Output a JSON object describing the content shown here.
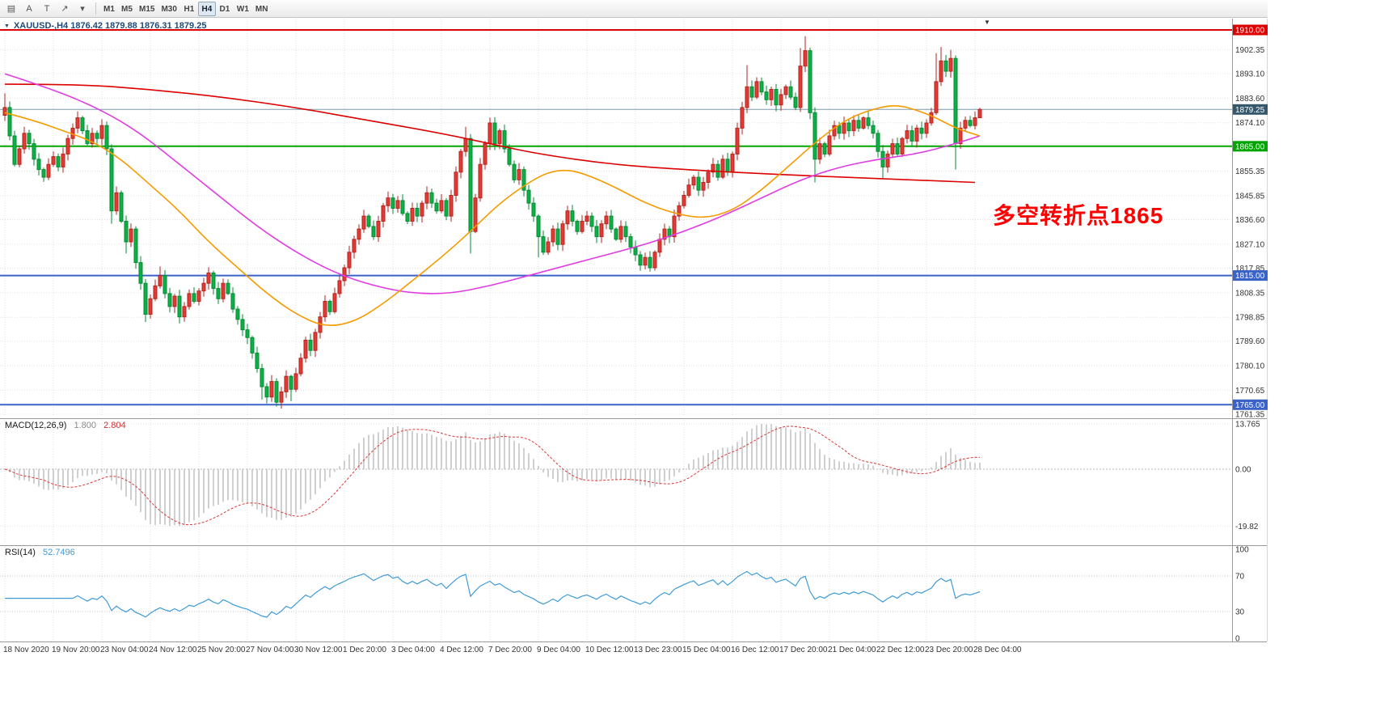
{
  "toolbar": {
    "icons": [
      {
        "name": "chart-grid-icon",
        "glyph": "▤"
      },
      {
        "name": "text-tool-icon",
        "glyph": "A"
      },
      {
        "name": "label-tool-icon",
        "glyph": "T"
      },
      {
        "name": "arrow-tool-icon",
        "glyph": "↗"
      },
      {
        "name": "arrow-dropdown-caret-icon",
        "glyph": "▾"
      }
    ],
    "timeframes": [
      "M1",
      "M5",
      "M15",
      "M30",
      "H1",
      "H4",
      "D1",
      "W1",
      "MN"
    ],
    "active_timeframe": "H4"
  },
  "chart_header": {
    "text": "XAUUSD-,H4  1876.42 1879.88 1876.31 1879.25"
  },
  "annotation": {
    "text": "多空转折点1865",
    "color": "#ff0000"
  },
  "macd_panel": {
    "name": "MACD(12,26,9)",
    "value_main": "1.800",
    "value_signal": "2.804"
  },
  "rsi_panel": {
    "name": "RSI(14)",
    "value": "52.7496"
  },
  "chart_data": {
    "type": "candlestick",
    "symbol": "XAUUSD-",
    "timeframe": "H4",
    "ohlc_readout": {
      "open": 1876.42,
      "high": 1879.88,
      "low": 1876.31,
      "close": 1879.25
    },
    "current_price": 1879.25,
    "candles_per_label": 10,
    "time_labels": [
      "18 Nov 2020",
      "19 Nov 20:00",
      "23 Nov 04:00",
      "24 Nov 12:00",
      "25 Nov 20:00",
      "27 Nov 04:00",
      "30 Nov 12:00",
      "1 Dec 20:00",
      "3 Dec 04:00",
      "4 Dec 12:00",
      "7 Dec 20:00",
      "9 Dec 04:00",
      "10 Dec 12:00",
      "13 Dec 23:00",
      "15 Dec 04:00",
      "16 Dec 12:00",
      "17 Dec 20:00",
      "21 Dec 04:00",
      "22 Dec 12:00",
      "23 Dec 20:00",
      "28 Dec 04:00"
    ],
    "y_axis": {
      "grid_labels": [
        "1902.35",
        "1893.10",
        "1883.60",
        "1874.10",
        "1855.35",
        "1845.85",
        "1836.60",
        "1827.10",
        "1817.85",
        "1808.35",
        "1798.85",
        "1789.60",
        "1780.10",
        "1770.65",
        "1761.35"
      ]
    },
    "key_levels": [
      {
        "price": 1910.0,
        "color": "#dd0000"
      },
      {
        "price": 1865.0,
        "color": "#00a400"
      },
      {
        "price": 1815.0,
        "color": "#3a62c8"
      },
      {
        "price": 1765.0,
        "color": "#3a62c8"
      }
    ],
    "special_labels": [
      {
        "text": "1910.00",
        "price": 1910.0,
        "bg": "#dd0000"
      },
      {
        "text": "1879.25",
        "price": 1879.25,
        "bg": "#35576b"
      },
      {
        "text": "1865.00",
        "price": 1865.0,
        "bg": "#00a400"
      },
      {
        "text": "1815.00",
        "price": 1815.0,
        "bg": "#3a62c8"
      },
      {
        "text": "1765.00",
        "price": 1765.0,
        "bg": "#3a62c8"
      }
    ],
    "colors": {
      "bull": "#e23b35",
      "bull_border": "#b3261f",
      "bear": "#0db045",
      "bear_border": "#088a35",
      "current_price_line": "#7d9aab"
    },
    "candles": {
      "first_open": 1877.0,
      "closes": [
        1880,
        1869,
        1858,
        1864,
        1870,
        1866,
        1860,
        1856,
        1853,
        1858,
        1861,
        1857,
        1862,
        1868,
        1872,
        1876,
        1871,
        1866,
        1870,
        1868,
        1873,
        1864,
        1840,
        1847,
        1836,
        1828,
        1833,
        1820,
        1812,
        1800,
        1806,
        1811,
        1815,
        1808,
        1803,
        1807,
        1799,
        1803,
        1808,
        1805,
        1809,
        1812,
        1816,
        1810,
        1806,
        1812,
        1808,
        1802,
        1798,
        1794,
        1791,
        1785,
        1779,
        1772,
        1768,
        1774,
        1766,
        1770,
        1776,
        1771,
        1777,
        1783,
        1790,
        1786,
        1793,
        1799,
        1805,
        1801,
        1808,
        1813,
        1818,
        1824,
        1829,
        1833,
        1838,
        1834,
        1830,
        1836,
        1842,
        1845,
        1841,
        1844,
        1839,
        1836,
        1841,
        1838,
        1843,
        1847,
        1843,
        1840,
        1844,
        1838,
        1846,
        1855,
        1863,
        1868,
        1832,
        1845,
        1858,
        1866,
        1874,
        1866,
        1871,
        1864,
        1858,
        1852,
        1856,
        1848,
        1843,
        1838,
        1830,
        1824,
        1828,
        1833,
        1827,
        1835,
        1840,
        1836,
        1832,
        1836,
        1838,
        1834,
        1830,
        1835,
        1838,
        1833,
        1829,
        1834,
        1830,
        1826,
        1823,
        1819,
        1822,
        1818,
        1824,
        1829,
        1833,
        1830,
        1838,
        1842,
        1846,
        1850,
        1853,
        1848,
        1851,
        1855,
        1858,
        1853,
        1860,
        1855,
        1862,
        1872,
        1880,
        1888,
        1884,
        1890,
        1886,
        1883,
        1887,
        1881,
        1885,
        1888,
        1884,
        1880,
        1896,
        1902,
        1878,
        1860,
        1866,
        1862,
        1869,
        1873,
        1870,
        1874,
        1871,
        1875,
        1872,
        1876,
        1873,
        1870,
        1863,
        1857,
        1862,
        1866,
        1862,
        1868,
        1871,
        1867,
        1872,
        1870,
        1874,
        1878,
        1890,
        1898,
        1894,
        1899,
        1866,
        1872,
        1875,
        1873,
        1876,
        1879.25
      ],
      "wick_overrides": {
        "0": {
          "high": 1885.5
        },
        "15": {
          "high": 1878.5
        },
        "22": {
          "low": 1835
        },
        "25": {
          "low": 1823.5
        },
        "29": {
          "low": 1797
        },
        "32": {
          "high": 1818.5
        },
        "36": {
          "low": 1796.5
        },
        "53": {
          "low": 1767
        },
        "54": {
          "low": 1765.5
        },
        "56": {
          "low": 1764.3
        },
        "59": {
          "low": 1766.4
        },
        "95": {
          "high": 1872.5
        },
        "96": {
          "low": 1823.5
        },
        "110": {
          "low": 1822
        },
        "133": {
          "low": 1816.5
        },
        "153": {
          "high": 1896.4
        },
        "164": {
          "high": 1903
        },
        "165": {
          "high": 1907.6
        },
        "167": {
          "low": 1851
        },
        "181": {
          "low": 1852.6
        },
        "192": {
          "high": 1901
        },
        "193": {
          "high": 1903.4
        },
        "195": {
          "high": 1902.3
        },
        "196": {
          "low": 1856
        },
        "201": {
          "high": 1879.9,
          "low": 1876.3
        }
      }
    },
    "moving_averages": [
      {
        "name": "slow-red",
        "color": "#dd0000",
        "points": [
          [
            0,
            1889
          ],
          [
            15,
            1889
          ],
          [
            30,
            1887
          ],
          [
            45,
            1884
          ],
          [
            60,
            1880
          ],
          [
            75,
            1875
          ],
          [
            90,
            1870
          ],
          [
            100,
            1866
          ],
          [
            110,
            1862
          ],
          [
            125,
            1858
          ],
          [
            140,
            1856
          ],
          [
            160,
            1854
          ],
          [
            180,
            1852.5
          ],
          [
            200,
            1851
          ]
        ]
      },
      {
        "name": "mid-magenta",
        "color": "#e13ce1",
        "points": [
          [
            0,
            1893
          ],
          [
            10,
            1887
          ],
          [
            20,
            1879
          ],
          [
            28,
            1870
          ],
          [
            36,
            1858
          ],
          [
            44,
            1846
          ],
          [
            52,
            1834
          ],
          [
            60,
            1824
          ],
          [
            68,
            1816
          ],
          [
            76,
            1811
          ],
          [
            84,
            1808
          ],
          [
            92,
            1808
          ],
          [
            100,
            1811
          ],
          [
            108,
            1815
          ],
          [
            116,
            1819
          ],
          [
            124,
            1823
          ],
          [
            132,
            1827
          ],
          [
            140,
            1832
          ],
          [
            148,
            1838
          ],
          [
            156,
            1845
          ],
          [
            164,
            1852
          ],
          [
            172,
            1857
          ],
          [
            180,
            1860
          ],
          [
            188,
            1862
          ],
          [
            196,
            1866
          ],
          [
            201,
            1869
          ]
        ]
      },
      {
        "name": "fast-orange",
        "color": "#f59b00",
        "points": [
          [
            0,
            1878
          ],
          [
            6,
            1875
          ],
          [
            12,
            1871
          ],
          [
            18,
            1867
          ],
          [
            24,
            1860
          ],
          [
            30,
            1850
          ],
          [
            36,
            1840
          ],
          [
            42,
            1828
          ],
          [
            48,
            1818
          ],
          [
            54,
            1808
          ],
          [
            60,
            1800
          ],
          [
            66,
            1795
          ],
          [
            72,
            1797
          ],
          [
            78,
            1804
          ],
          [
            84,
            1813
          ],
          [
            90,
            1822
          ],
          [
            96,
            1832
          ],
          [
            102,
            1843
          ],
          [
            108,
            1851
          ],
          [
            112,
            1855
          ],
          [
            116,
            1856
          ],
          [
            120,
            1854
          ],
          [
            126,
            1849
          ],
          [
            132,
            1843
          ],
          [
            138,
            1839
          ],
          [
            144,
            1837
          ],
          [
            150,
            1840
          ],
          [
            156,
            1848
          ],
          [
            162,
            1858
          ],
          [
            168,
            1868
          ],
          [
            174,
            1876
          ],
          [
            180,
            1880
          ],
          [
            184,
            1881
          ],
          [
            188,
            1879
          ],
          [
            192,
            1876
          ],
          [
            196,
            1872
          ],
          [
            201,
            1869
          ]
        ]
      }
    ],
    "macd": {
      "params": [
        12,
        26,
        9
      ],
      "value": 1.8,
      "signal_value": 2.804,
      "axis_max_label": "13.765",
      "zero_label": "0.00",
      "axis_min_label": "-19.82",
      "histogram_color": "#c4c4c4",
      "signal_color": "#e03636"
    },
    "rsi": {
      "period": 14,
      "value": 52.7496,
      "levels": [
        70,
        30
      ],
      "axis_labels": [
        "100",
        "70",
        "30",
        "0"
      ],
      "color": "#3f9bd8"
    }
  }
}
